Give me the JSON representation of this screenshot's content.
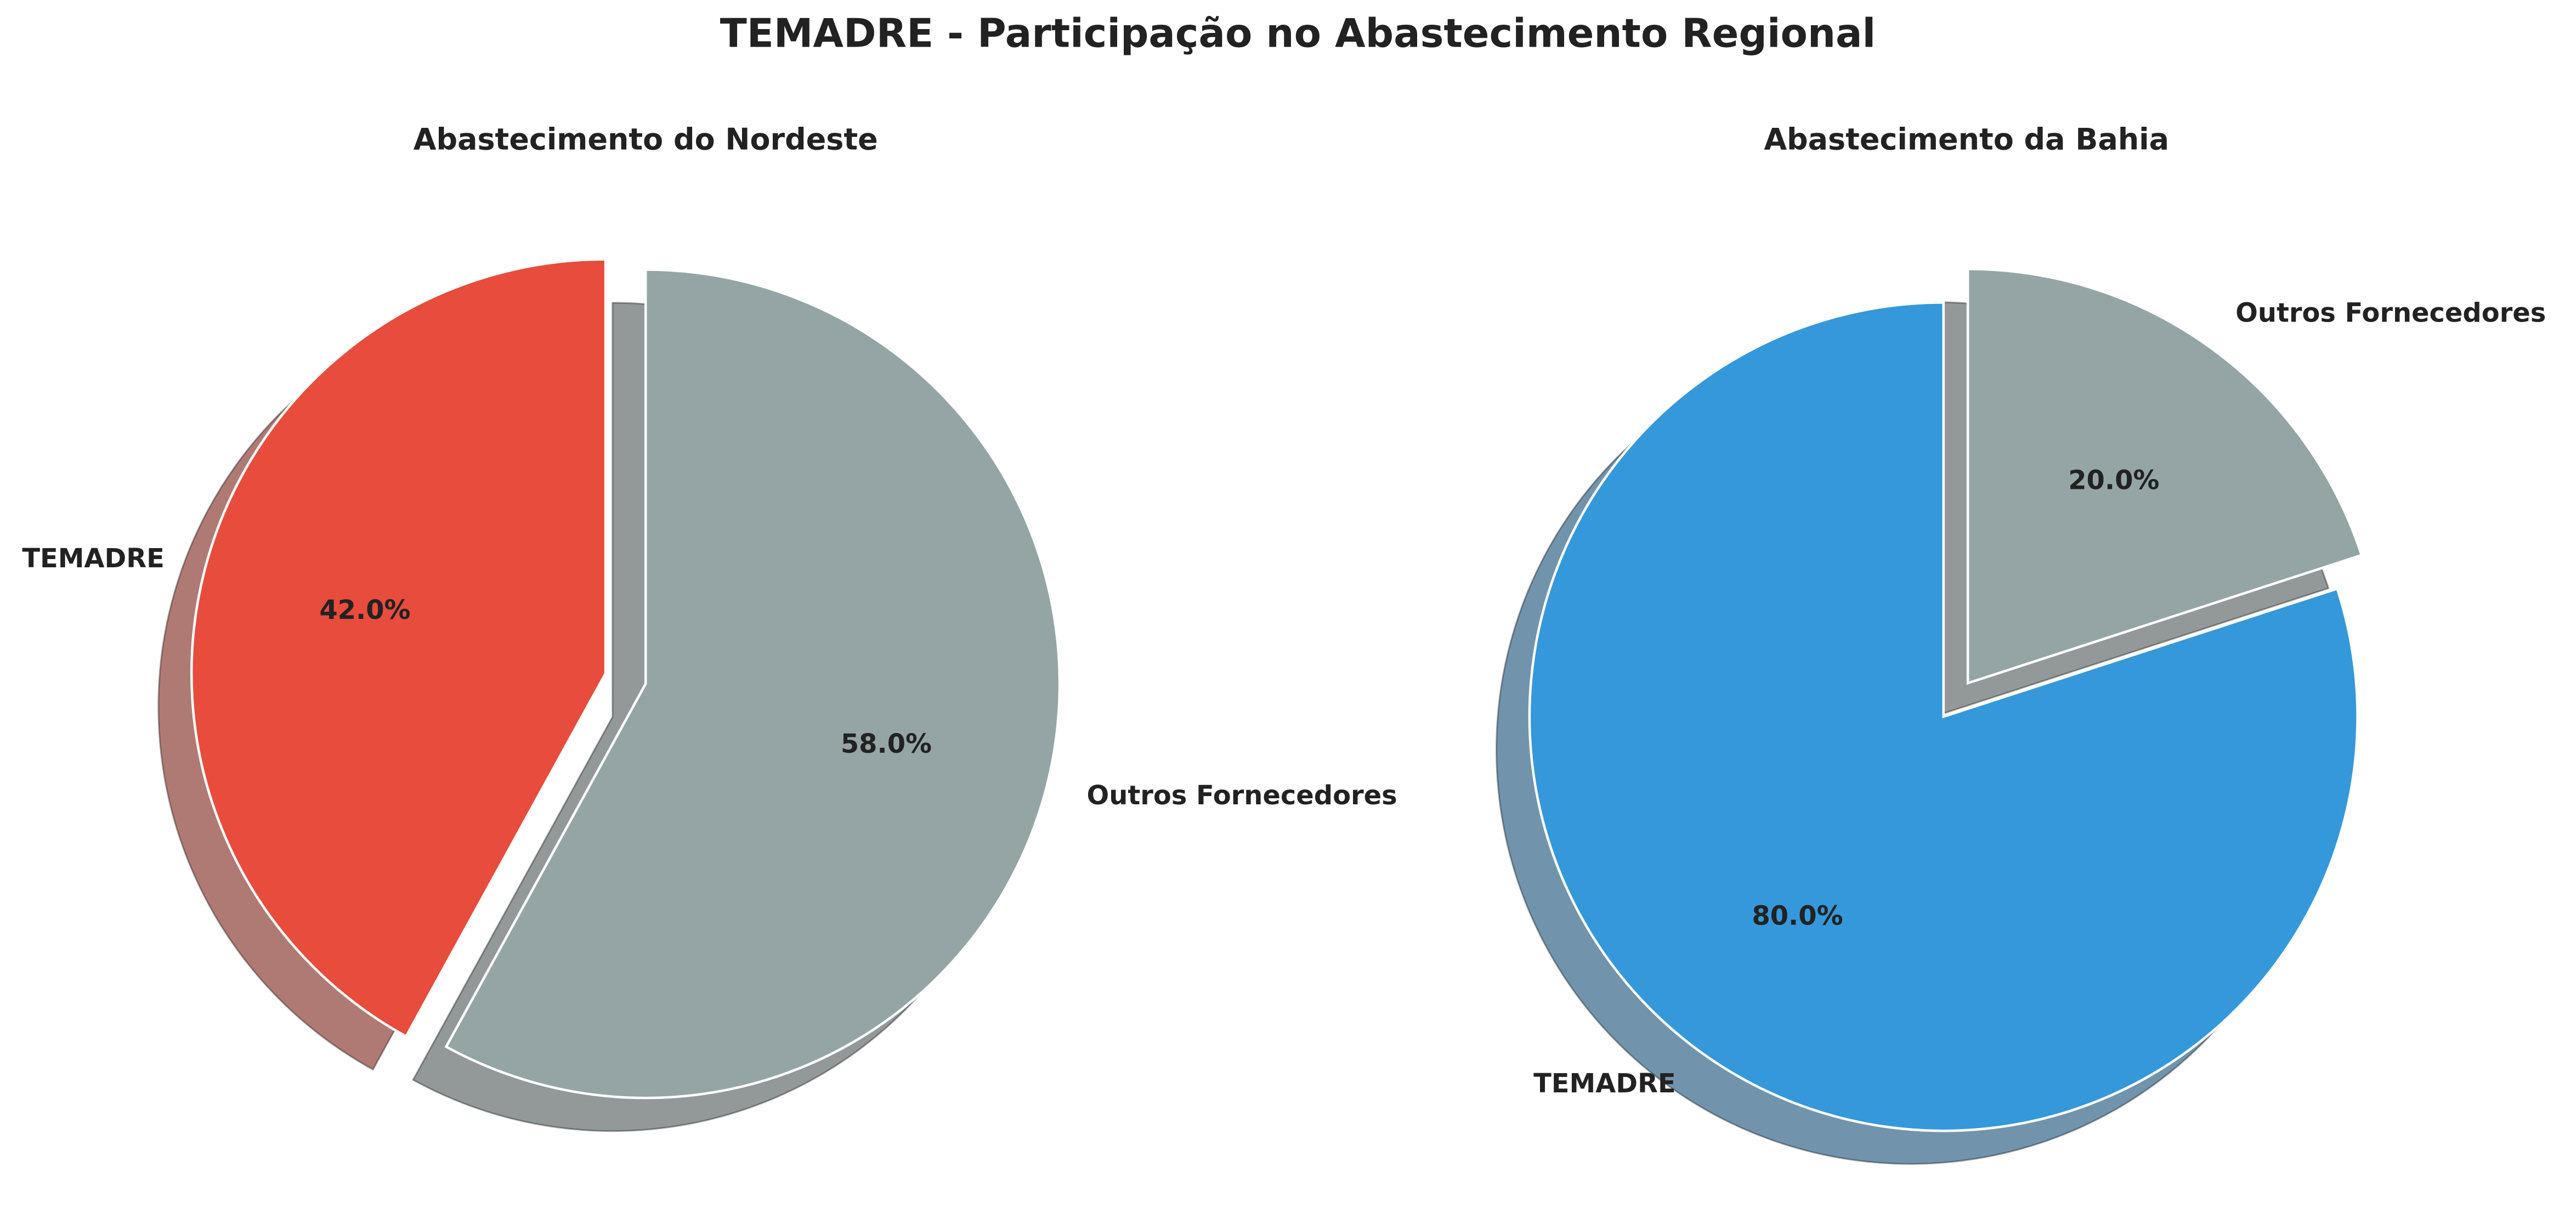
{
  "title": "TEMADRE - Participação no Abastecimento Regional",
  "chart_data": [
    {
      "type": "pie",
      "title": "Abastecimento do Nordeste",
      "categories": [
        "TEMADRE",
        "Outros Fornecedores"
      ],
      "values": [
        42,
        58
      ],
      "value_labels": [
        "42.0%",
        "58.0%"
      ],
      "colors": [
        "#e74c3c",
        "#95a5a6"
      ],
      "explode": [
        0.1,
        0
      ],
      "start_angle": 90,
      "shadow": true
    },
    {
      "type": "pie",
      "title": "Abastecimento da Bahia",
      "categories": [
        "TEMADRE",
        "Outros Fornecedores"
      ],
      "values": [
        80,
        20
      ],
      "value_labels": [
        "80.0%",
        "20.0%"
      ],
      "colors": [
        "#3498db",
        "#95a5a6"
      ],
      "explode": [
        0,
        0.1
      ],
      "start_angle": 90,
      "shadow": true
    }
  ]
}
